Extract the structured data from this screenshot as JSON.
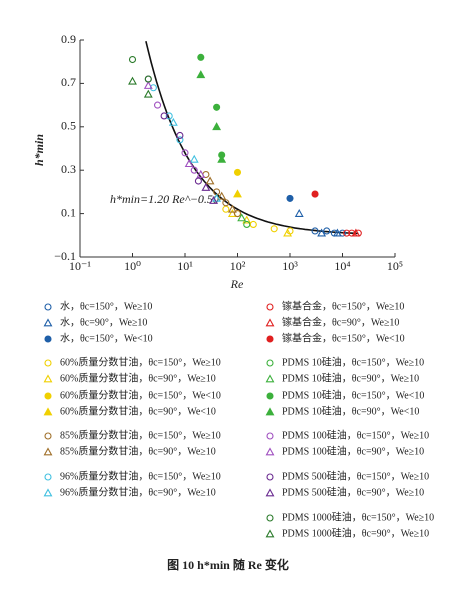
{
  "chart_data": {
    "type": "scatter",
    "xlabel": "Re",
    "ylabel": "h*min",
    "xscale": "log",
    "xlim": [
      0.1,
      100000
    ],
    "xticks": [
      {
        "value": 0.1,
        "label": "10⁻¹"
      },
      {
        "value": 1,
        "label": "10⁰"
      },
      {
        "value": 10,
        "label": "10¹"
      },
      {
        "value": 100,
        "label": "10²"
      },
      {
        "value": 1000,
        "label": "10³"
      },
      {
        "value": 10000,
        "label": "10⁴"
      },
      {
        "value": 100000,
        "label": "10⁵"
      }
    ],
    "ylim": [
      -0.1,
      0.9
    ],
    "yticks": [
      {
        "value": -0.1,
        "label": "−0.1"
      },
      0.1,
      0.3,
      0.5,
      0.7,
      0.9
    ],
    "annotation": "h*min=1.20 Re^−0.50",
    "fit": {
      "a": 1.2,
      "b": -0.5,
      "x_range": [
        1.8,
        20000
      ]
    },
    "caption": "图 10   h*min 随 Re 变化",
    "series": [
      {
        "name": "水，θc=150°，We≥10",
        "color": "#1f5fa8",
        "marker": "circle",
        "filled": false,
        "x": [
          3000,
          5000,
          7000,
          10000
        ],
        "values": [
          0.02,
          0.02,
          0.01,
          0.01
        ]
      },
      {
        "name": "水，θc=90°，We≥10",
        "color": "#1f5fa8",
        "marker": "triangle",
        "filled": false,
        "x": [
          1500,
          4000,
          8000
        ],
        "values": [
          0.1,
          0.01,
          0.01
        ]
      },
      {
        "name": "水，θc=150°，We<10",
        "color": "#1f5fa8",
        "marker": "circle",
        "filled": true,
        "x": [
          1000
        ],
        "values": [
          0.17
        ]
      },
      {
        "name": "60%质量分数甘油，θc=150°，We≥10",
        "color": "#f0d000",
        "marker": "circle",
        "filled": false,
        "x": [
          60,
          100,
          200,
          500,
          1000
        ],
        "values": [
          0.12,
          0.1,
          0.05,
          0.03,
          0.02
        ]
      },
      {
        "name": "60%质量分数甘油，θc=90°，We≥10",
        "color": "#f0d000",
        "marker": "triangle",
        "filled": false,
        "x": [
          80,
          150,
          900
        ],
        "values": [
          0.1,
          0.07,
          0.01
        ]
      },
      {
        "name": "60%质量分数甘油，θc=150°，We<10",
        "color": "#f0d000",
        "marker": "circle",
        "filled": true,
        "x": [
          100
        ],
        "values": [
          0.29
        ]
      },
      {
        "name": "60%质量分数甘油，θc=90°，We<10",
        "color": "#f0d000",
        "marker": "triangle",
        "filled": true,
        "x": [
          100
        ],
        "values": [
          0.19
        ]
      },
      {
        "name": "85%质量分数甘油，θc=150°，We≥10",
        "color": "#a0702a",
        "marker": "circle",
        "filled": false,
        "x": [
          25,
          40,
          60,
          100
        ],
        "values": [
          0.28,
          0.2,
          0.15,
          0.1
        ]
      },
      {
        "name": "85%质量分数甘油，θc=90°，We≥10",
        "color": "#a0702a",
        "marker": "triangle",
        "filled": false,
        "x": [
          30,
          50,
          80
        ],
        "values": [
          0.25,
          0.18,
          0.12
        ]
      },
      {
        "name": "96%质量分数甘油，θc=150°，We≥10",
        "color": "#40c0e0",
        "marker": "circle",
        "filled": false,
        "x": [
          2.5,
          5,
          8
        ],
        "values": [
          0.68,
          0.55,
          0.44
        ]
      },
      {
        "name": "96%质量分数甘油，θc=90°，We≥10",
        "color": "#40c0e0",
        "marker": "triangle",
        "filled": false,
        "x": [
          6,
          15,
          40
        ],
        "values": [
          0.52,
          0.35,
          0.17
        ]
      },
      {
        "name": "镓基合金，θc=150°，We≥10",
        "color": "#e02020",
        "marker": "circle",
        "filled": false,
        "x": [
          12000,
          15000,
          20000
        ],
        "values": [
          0.01,
          0.01,
          0.01
        ]
      },
      {
        "name": "镓基合金，θc=90°，We≥10",
        "color": "#e02020",
        "marker": "triangle",
        "filled": false,
        "x": [
          18000
        ],
        "values": [
          0.01
        ]
      },
      {
        "name": "镓基合金，θc=150°，We<10",
        "color": "#e02020",
        "marker": "circle",
        "filled": true,
        "x": [
          3000
        ],
        "values": [
          0.19
        ]
      },
      {
        "name": "PDMS 10硅油，θc=150°，We≥10",
        "color": "#3cb03c",
        "marker": "circle",
        "filled": false,
        "x": [
          150
        ],
        "values": [
          0.05
        ]
      },
      {
        "name": "PDMS 10硅油，θc=90°，We≥10",
        "color": "#3cb03c",
        "marker": "triangle",
        "filled": false,
        "x": [
          120
        ],
        "values": [
          0.08
        ]
      },
      {
        "name": "PDMS 10硅油，θc=150°，We<10",
        "color": "#3cb03c",
        "marker": "circle",
        "filled": true,
        "x": [
          20,
          40,
          50
        ],
        "values": [
          0.82,
          0.59,
          0.37
        ]
      },
      {
        "name": "PDMS 10硅油，θc=90°，We<10",
        "color": "#3cb03c",
        "marker": "triangle",
        "filled": true,
        "x": [
          20,
          40,
          50
        ],
        "values": [
          0.74,
          0.5,
          0.35
        ]
      },
      {
        "name": "PDMS 100硅油，θc=150°，We≥10",
        "color": "#a050c0",
        "marker": "circle",
        "filled": false,
        "x": [
          2,
          3,
          10,
          15
        ],
        "values": [
          0.72,
          0.6,
          0.38,
          0.3
        ]
      },
      {
        "name": "PDMS 100硅油，θc=90°，We≥10",
        "color": "#a050c0",
        "marker": "triangle",
        "filled": false,
        "x": [
          2,
          12,
          20
        ],
        "values": [
          0.69,
          0.33,
          0.28
        ]
      },
      {
        "name": "PDMS 500硅油，θc=150°，We≥10",
        "color": "#6a2a90",
        "marker": "circle",
        "filled": false,
        "x": [
          4,
          8,
          18
        ],
        "values": [
          0.55,
          0.46,
          0.25
        ]
      },
      {
        "name": "PDMS 500硅油，θc=90°，We≥10",
        "color": "#6a2a90",
        "marker": "triangle",
        "filled": false,
        "x": [
          25,
          35
        ],
        "values": [
          0.22,
          0.16
        ]
      },
      {
        "name": "PDMS 1000硅油，θc=150°，We≥10",
        "color": "#2a7a2a",
        "marker": "circle",
        "filled": false,
        "x": [
          1,
          2
        ],
        "values": [
          0.81,
          0.72
        ]
      },
      {
        "name": "PDMS 1000硅油，θc=90°，We≥10",
        "color": "#2a7a2a",
        "marker": "triangle",
        "filled": false,
        "x": [
          1,
          2
        ],
        "values": [
          0.71,
          0.65
        ]
      }
    ]
  }
}
